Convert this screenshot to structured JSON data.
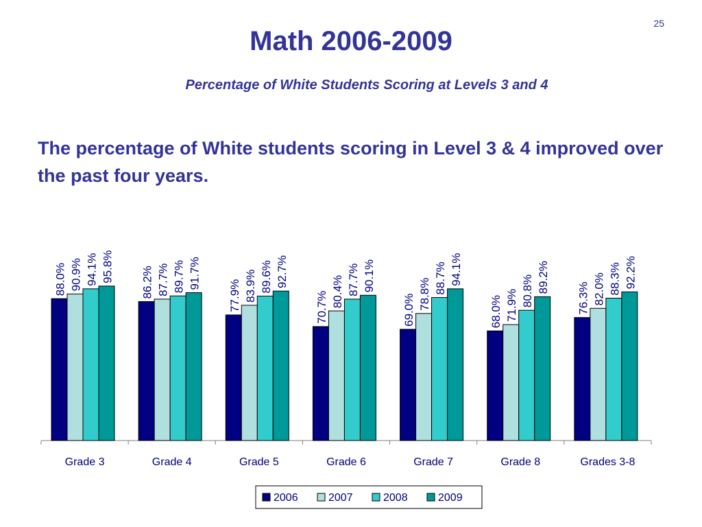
{
  "slide": {
    "page_number": "25",
    "title": "Math 2006-2009",
    "subtitle": "Percentage of White Students Scoring at Levels 3 and 4",
    "body": "The percentage of White students scoring in Level 3 & 4 improved over the past four years."
  },
  "chart_data": {
    "type": "bar",
    "categories": [
      "Grade 3",
      "Grade 4",
      "Grade 5",
      "Grade 6",
      "Grade 7",
      "Grade 8",
      "Grades 3-8"
    ],
    "series": [
      {
        "name": "2006",
        "color": "#000080",
        "values": [
          88.0,
          86.2,
          77.9,
          70.7,
          69.0,
          68.0,
          76.3
        ]
      },
      {
        "name": "2007",
        "color": "#B0DFE0",
        "values": [
          90.9,
          87.7,
          83.9,
          80.4,
          78.8,
          71.9,
          82.0
        ]
      },
      {
        "name": "2008",
        "color": "#33CCCC",
        "values": [
          94.1,
          89.7,
          89.6,
          87.7,
          88.7,
          80.8,
          88.3
        ]
      },
      {
        "name": "2009",
        "color": "#009999",
        "values": [
          95.8,
          91.7,
          92.7,
          90.1,
          94.1,
          89.2,
          92.2
        ]
      }
    ],
    "data_labels": [
      [
        "88.0%",
        "90.9%",
        "94.1%",
        "95.8%"
      ],
      [
        "86.2%",
        "87.7%",
        "89.7%",
        "91.7%"
      ],
      [
        "77.9%",
        "83.9%",
        "89.6%",
        "92.7%"
      ],
      [
        "70.7%",
        "80.4%",
        "87.7%",
        "90.1%"
      ],
      [
        "69.0%",
        "78.8%",
        "88.7%",
        "94.1%"
      ],
      [
        "68.0%",
        "71.9%",
        "80.8%",
        "89.2%"
      ],
      [
        "76.3%",
        "82.0%",
        "88.3%",
        "92.2%"
      ]
    ],
    "ylim": [
      0,
      100
    ],
    "grid": false,
    "legend": "bottom-center"
  }
}
